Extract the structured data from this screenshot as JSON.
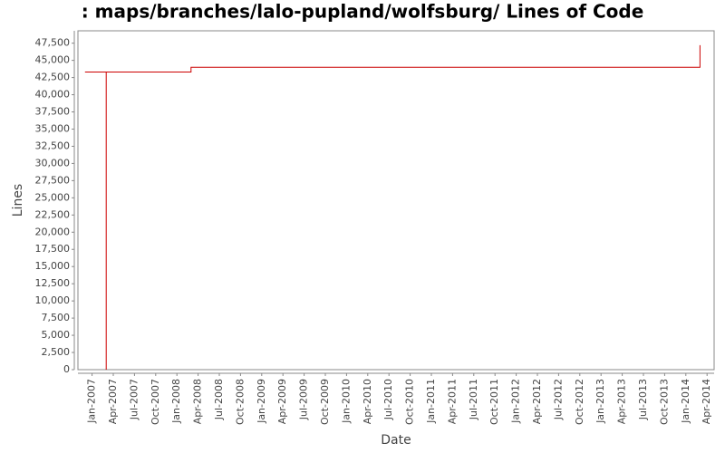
{
  "chart_data": {
    "type": "step-line",
    "title": ": maps/branches/lalo-pupland/wolfsburg/ Lines of Code",
    "x_label": "Date",
    "y_label": "Lines",
    "x": [
      "2006-12",
      "2007-03",
      "2007-03",
      "2008-03",
      "2014-03"
    ],
    "series": [
      {
        "name": "Lines",
        "color": "#cc0000",
        "values": [
          43300,
          0,
          43300,
          44000,
          47200
        ]
      }
    ],
    "xlim": [
      "2006-11",
      "2014-05"
    ],
    "xticks": [
      {
        "value": "2007-01",
        "label": "Jan-2007"
      },
      {
        "value": "2007-04",
        "label": "Apr-2007"
      },
      {
        "value": "2007-07",
        "label": "Jul-2007"
      },
      {
        "value": "2007-10",
        "label": "Oct-2007"
      },
      {
        "value": "2008-01",
        "label": "Jan-2008"
      },
      {
        "value": "2008-04",
        "label": "Apr-2008"
      },
      {
        "value": "2008-07",
        "label": "Jul-2008"
      },
      {
        "value": "2008-10",
        "label": "Oct-2008"
      },
      {
        "value": "2009-01",
        "label": "Jan-2009"
      },
      {
        "value": "2009-04",
        "label": "Apr-2009"
      },
      {
        "value": "2009-07",
        "label": "Jul-2009"
      },
      {
        "value": "2009-10",
        "label": "Oct-2009"
      },
      {
        "value": "2010-01",
        "label": "Jan-2010"
      },
      {
        "value": "2010-04",
        "label": "Apr-2010"
      },
      {
        "value": "2010-07",
        "label": "Jul-2010"
      },
      {
        "value": "2010-10",
        "label": "Oct-2010"
      },
      {
        "value": "2011-01",
        "label": "Jan-2011"
      },
      {
        "value": "2011-04",
        "label": "Apr-2011"
      },
      {
        "value": "2011-07",
        "label": "Jul-2011"
      },
      {
        "value": "2011-10",
        "label": "Oct-2011"
      },
      {
        "value": "2012-01",
        "label": "Jan-2012"
      },
      {
        "value": "2012-04",
        "label": "Apr-2012"
      },
      {
        "value": "2012-07",
        "label": "Jul-2012"
      },
      {
        "value": "2012-10",
        "label": "Oct-2012"
      },
      {
        "value": "2013-01",
        "label": "Jan-2013"
      },
      {
        "value": "2013-04",
        "label": "Apr-2013"
      },
      {
        "value": "2013-07",
        "label": "Jul-2013"
      },
      {
        "value": "2013-10",
        "label": "Oct-2013"
      },
      {
        "value": "2014-01",
        "label": "Jan-2014"
      },
      {
        "value": "2014-04",
        "label": "Apr-2014"
      }
    ],
    "ylim": [
      0,
      49300
    ],
    "yticks": [
      0,
      {
        "value": 2500,
        "label": "2,500"
      },
      {
        "value": 5000,
        "label": "5,000"
      },
      {
        "value": 7500,
        "label": "7,500"
      },
      {
        "value": 10000,
        "label": "10,000"
      },
      {
        "value": 12500,
        "label": "12,500"
      },
      {
        "value": 15000,
        "label": "15,000"
      },
      {
        "value": 17500,
        "label": "17,500"
      },
      {
        "value": 20000,
        "label": "20,000"
      },
      {
        "value": 22500,
        "label": "22,500"
      },
      {
        "value": 25000,
        "label": "25,000"
      },
      {
        "value": 27500,
        "label": "27,500"
      },
      {
        "value": 30000,
        "label": "30,000"
      },
      {
        "value": 32500,
        "label": "32,500"
      },
      {
        "value": 35000,
        "label": "35,000"
      },
      {
        "value": 37500,
        "label": "37,500"
      },
      {
        "value": 40000,
        "label": "40,000"
      },
      {
        "value": 42500,
        "label": "42,500"
      },
      {
        "value": 45000,
        "label": "45,000"
      },
      {
        "value": 47500,
        "label": "47,500"
      }
    ],
    "grid": false
  }
}
